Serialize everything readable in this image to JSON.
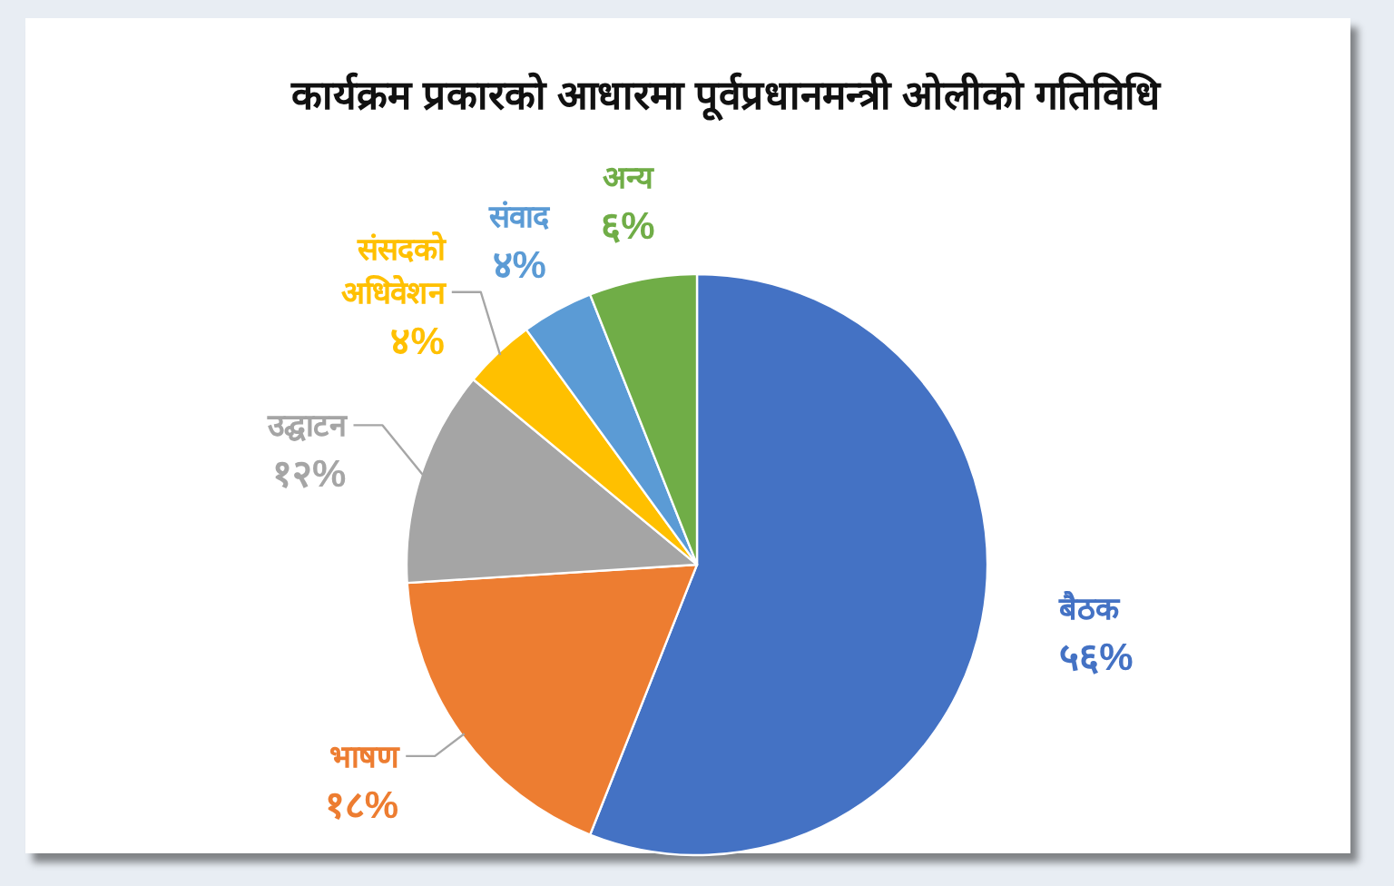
{
  "chart_data": {
    "type": "pie",
    "title": "कार्यक्रम प्रकारको आधारमा पूर्वप्रधानमन्त्री ओलीको गतिविधि",
    "categories": [
      "बैठक",
      "भाषण",
      "उद्घाटन",
      "संसदको अधिवेशन",
      "संवाद",
      "अन्य"
    ],
    "values": [
      56,
      18,
      12,
      4,
      4,
      6
    ],
    "colors": [
      "#4472c4",
      "#ed7d31",
      "#a5a5a5",
      "#ffc000",
      "#5b9bd5",
      "#70ad47"
    ],
    "value_labels": [
      "५६%",
      "१८%",
      "१२%",
      "४%",
      "४%",
      "६%"
    ]
  }
}
